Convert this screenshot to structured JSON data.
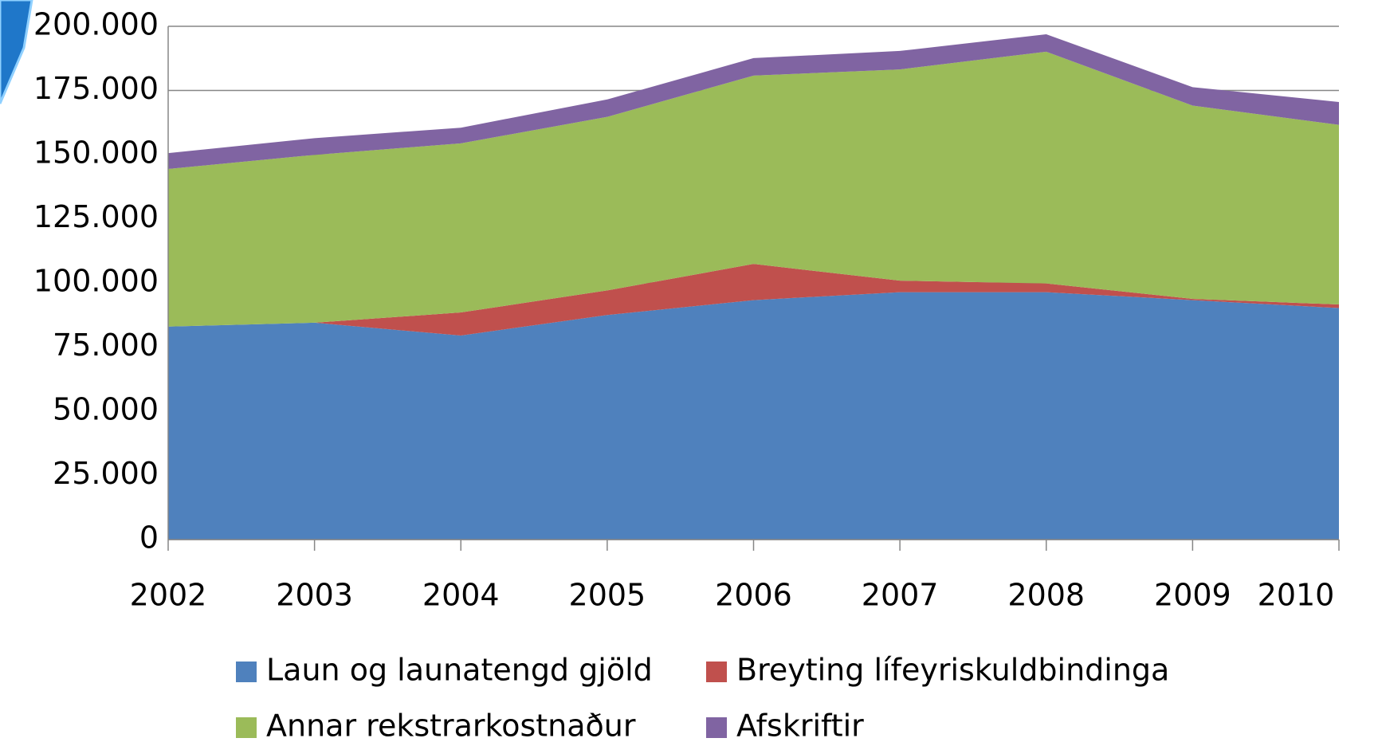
{
  "chart_data": {
    "type": "stacked-area",
    "categories": [
      "2002",
      "2003",
      "2004",
      "2005",
      "2006",
      "2007",
      "2008",
      "2009",
      "2010"
    ],
    "series": [
      {
        "name": "Laun og launatengd gjöld",
        "color": "#4f81bd",
        "values": [
          83000,
          84500,
          79500,
          87500,
          93300,
          96400,
          96400,
          93300,
          90200
        ]
      },
      {
        "name": "Breyting lífeyriskuldbindinga",
        "color": "#c0504d",
        "values": [
          0,
          0,
          9000,
          9600,
          14100,
          4500,
          3400,
          500,
          1400
        ]
      },
      {
        "name": "Annar rekstrarkostnaður",
        "color": "#9bbb59",
        "values": [
          61400,
          65400,
          65900,
          67600,
          73400,
          82300,
          90300,
          75300,
          70000
        ]
      },
      {
        "name": "Afskriftir",
        "color": "#8064a2",
        "values": [
          6200,
          6500,
          6100,
          6800,
          6800,
          7200,
          6800,
          7200,
          8900
        ]
      }
    ],
    "ylim": [
      0,
      200000
    ],
    "yticks": [
      0,
      {
        "value": 25000,
        "label": "25.000"
      },
      {
        "value": 50000,
        "label": "50.000"
      },
      {
        "value": 75000,
        "label": "75.000"
      },
      {
        "value": 100000,
        "label": "100.000"
      },
      {
        "value": 125000,
        "label": "125.000"
      },
      {
        "value": 150000,
        "label": "150.000"
      },
      {
        "value": 175000,
        "label": "175.000"
      },
      {
        "value": 200000,
        "label": "200.000"
      }
    ],
    "grid": true,
    "legend": "bottom"
  }
}
